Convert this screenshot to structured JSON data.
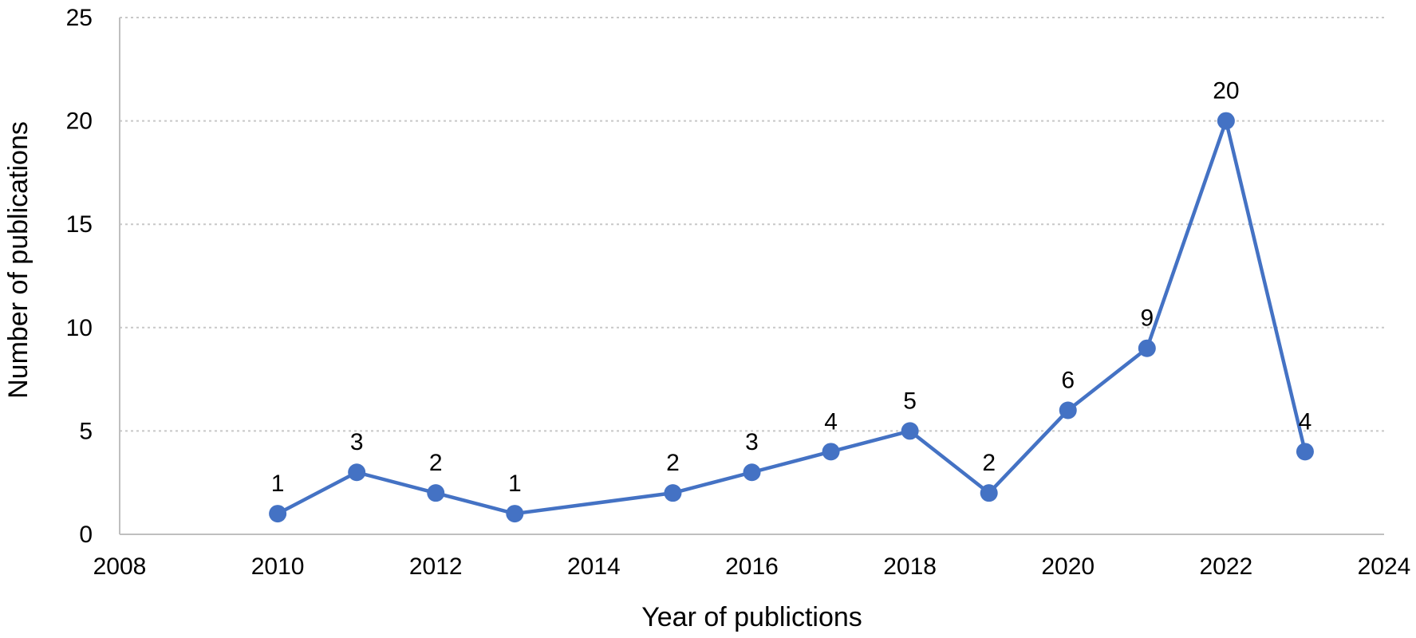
{
  "chart_data": {
    "type": "line",
    "title": "",
    "xlabel": "Year of publictions",
    "ylabel": "Number of publications",
    "xlim": [
      2008,
      2024
    ],
    "ylim": [
      0,
      25
    ],
    "x_ticks": [
      2008,
      2010,
      2012,
      2014,
      2016,
      2018,
      2020,
      2022,
      2024
    ],
    "y_ticks": [
      0,
      5,
      10,
      15,
      20,
      25
    ],
    "grid": "horizontal dotted",
    "legend": "none",
    "series": [
      {
        "color": "#4472C4",
        "points": [
          {
            "x": 2010,
            "y": 1
          },
          {
            "x": 2011,
            "y": 3
          },
          {
            "x": 2012,
            "y": 2
          },
          {
            "x": 2013,
            "y": 1
          },
          {
            "x": 2015,
            "y": 2
          },
          {
            "x": 2016,
            "y": 3
          },
          {
            "x": 2017,
            "y": 4
          },
          {
            "x": 2018,
            "y": 5
          },
          {
            "x": 2019,
            "y": 2
          },
          {
            "x": 2020,
            "y": 6
          },
          {
            "x": 2021,
            "y": 9
          },
          {
            "x": 2022,
            "y": 20
          },
          {
            "x": 2023,
            "y": 4
          }
        ]
      }
    ],
    "colors": {
      "series": "#4472C4",
      "grid": "#c8c8c8",
      "axis": "#bfbfbf",
      "text": "#000000"
    }
  }
}
